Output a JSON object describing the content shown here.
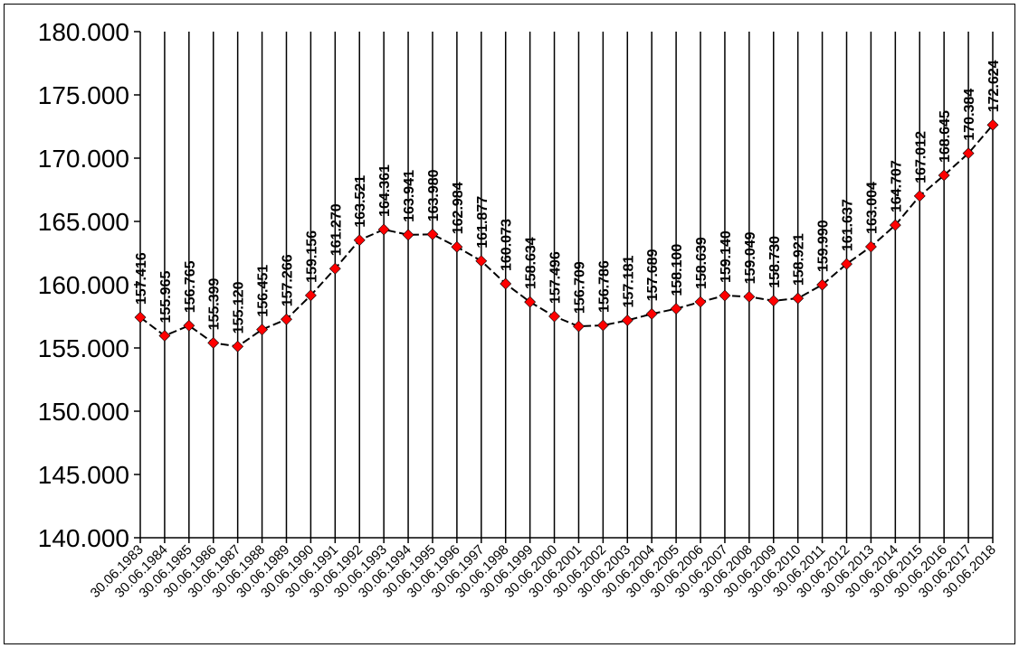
{
  "chart_data": {
    "type": "line",
    "title": "",
    "xlabel": "",
    "ylabel": "",
    "ylim": [
      140000,
      180000
    ],
    "y_ticks": [
      "140.000",
      "145.000",
      "150.000",
      "155.000",
      "160.000",
      "165.000",
      "170.000",
      "175.000",
      "180.000"
    ],
    "categories": [
      "30.06.1983",
      "30.06.1984",
      "30.06.1985",
      "30.06.1986",
      "30.06.1987",
      "30.06.1988",
      "30.06.1989",
      "30.06.1990",
      "30.06.1991",
      "30.06.1992",
      "30.06.1993",
      "30.06.1994",
      "30.06.1995",
      "30.06.1996",
      "30.06.1997",
      "30.06.1998",
      "30.06.1999",
      "30.06.2000",
      "30.06.2001",
      "30.06.2002",
      "30.06.2003",
      "30.06.2004",
      "30.06.2005",
      "30.06.2006",
      "30.06.2007",
      "30.06.2008",
      "30.06.2009",
      "30.06.2010",
      "30.06.2011",
      "30.06.2012",
      "30.06.2013",
      "30.06.2014",
      "30.06.2015",
      "30.06.2016",
      "30.06.2017",
      "30.06.2018"
    ],
    "values": [
      157416,
      155965,
      156765,
      155399,
      155120,
      156451,
      157266,
      159156,
      161270,
      163521,
      164361,
      163941,
      163980,
      162984,
      161877,
      160073,
      158634,
      157496,
      156709,
      156786,
      157181,
      157689,
      158100,
      158639,
      159140,
      159049,
      158730,
      158921,
      159990,
      161637,
      163004,
      164707,
      167012,
      168645,
      170384,
      172624
    ],
    "labels": [
      "157.416",
      "155.965",
      "156.765",
      "155.399",
      "155.120",
      "156.451",
      "157.266",
      "159.156",
      "161.270",
      "163.521",
      "164.361",
      "163.941",
      "163.980",
      "162.984",
      "161.877",
      "160.073",
      "158.634",
      "157.496",
      "156.709",
      "156.786",
      "157.181",
      "157.689",
      "158.100",
      "158.639",
      "159.140",
      "159.049",
      "158.730",
      "158.921",
      "159.990",
      "161.637",
      "163.004",
      "164.707",
      "167.012",
      "168.645",
      "170.384",
      "172.624"
    ],
    "line_color": "#000000",
    "marker_color": "#ff0000",
    "grid": false,
    "legend": "none"
  }
}
